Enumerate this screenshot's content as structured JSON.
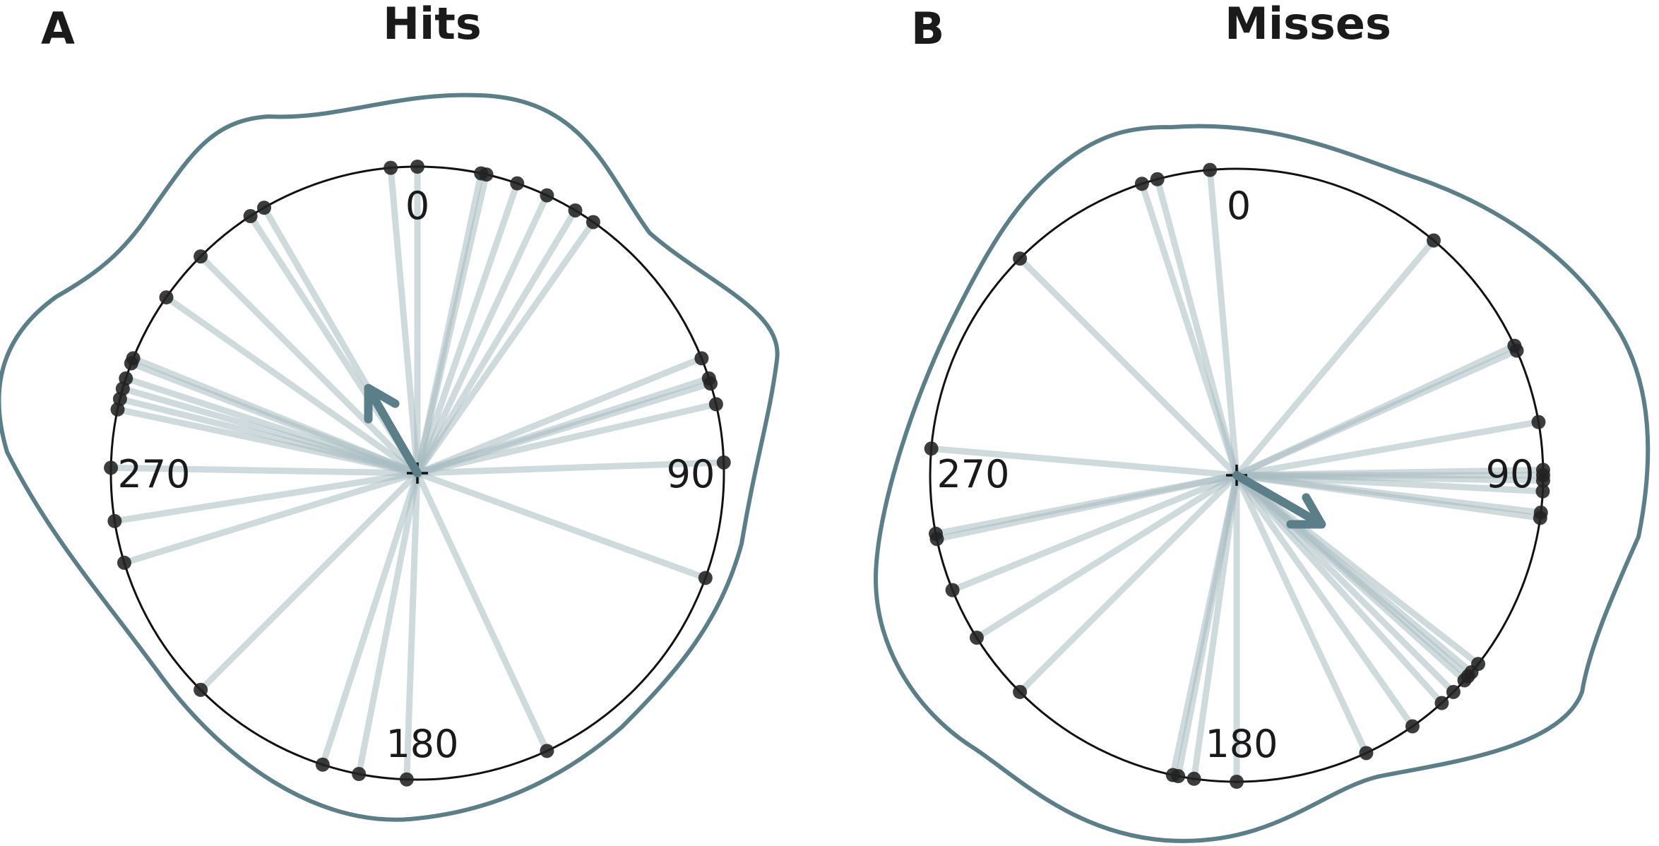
{
  "colors": {
    "accent": "#5b7f88",
    "spoke": "#a7bcc1",
    "point": "#222222",
    "circle": "#111111"
  },
  "chart_data": [
    {
      "type": "scatter",
      "subtype": "circular-polar",
      "panel_label": "A",
      "title": "Hits",
      "angle_unit": "degrees",
      "tick_labels": [
        "0",
        "90",
        "180",
        "270"
      ],
      "point_angles": [
        0,
        355,
        12,
        13,
        19,
        25,
        31,
        35,
        330,
        327,
        315,
        305,
        68,
        72,
        73,
        77,
        88,
        110,
        155,
        182,
        191,
        198,
        225,
        253,
        261,
        271,
        282,
        284,
        286,
        288,
        291,
        292
      ],
      "mean_direction": {
        "angle": 330,
        "length": 0.32
      },
      "density_shape": "von Mises kernel density (outer curve)"
    },
    {
      "type": "scatter",
      "subtype": "circular-polar",
      "panel_label": "B",
      "title": "Misses",
      "angle_unit": "degrees",
      "tick_labels": [
        "0",
        "90",
        "180",
        "270"
      ],
      "point_angles": [
        355,
        345,
        342,
        315,
        40,
        65,
        66,
        80,
        89,
        90,
        91,
        93,
        97,
        98,
        128,
        130,
        131,
        132,
        135,
        138,
        145,
        155,
        180,
        188,
        191,
        192,
        225,
        238,
        248,
        258,
        259,
        275
      ],
      "mean_direction": {
        "angle": 120,
        "length": 0.32
      },
      "density_shape": "von Mises kernel density (outer curve)"
    }
  ]
}
